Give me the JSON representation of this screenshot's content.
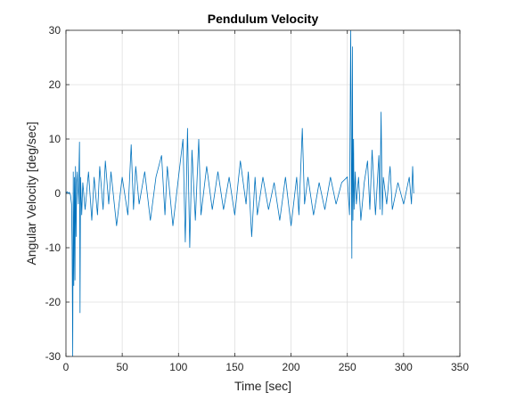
{
  "chart_data": {
    "type": "line",
    "title": "Pendulum Velocity",
    "xlabel": "Time [sec]",
    "ylabel": "Angular Velocity [deg/sec]",
    "xlim": [
      0,
      350
    ],
    "ylim": [
      -30,
      30
    ],
    "xticks": [
      "0",
      "50",
      "100",
      "150",
      "200",
      "250",
      "300",
      "350"
    ],
    "yticks": [
      "-30",
      "-20",
      "-10",
      "0",
      "10",
      "20",
      "30"
    ],
    "grid": true,
    "line_color": "#0072BD",
    "series": [
      {
        "x": [
          0,
          1,
          2,
          3,
          4,
          5,
          5.5,
          6,
          6.5,
          7,
          7.5,
          8,
          8.5,
          9,
          9.5,
          10,
          11,
          12,
          12.5,
          13,
          14,
          15,
          17,
          20,
          23,
          25,
          28,
          30,
          33,
          35,
          38,
          40,
          45,
          50,
          55,
          58,
          60,
          62,
          65,
          70,
          75,
          80,
          85,
          88,
          90,
          95,
          100,
          104,
          106,
          108,
          110,
          112,
          115,
          118,
          120,
          125,
          130,
          135,
          140,
          145,
          150,
          155,
          160,
          162,
          165,
          168,
          170,
          175,
          180,
          185,
          190,
          195,
          200,
          205,
          207,
          210,
          212,
          215,
          220,
          225,
          230,
          235,
          240,
          245,
          250,
          252,
          253,
          254,
          254.5,
          255,
          255.5,
          256,
          257,
          258,
          260,
          262,
          265,
          268,
          270,
          272,
          275,
          278,
          279,
          280,
          281,
          282,
          285,
          288,
          290,
          295,
          300,
          305,
          307,
          308,
          309
        ],
        "y": [
          0,
          0.3,
          0,
          0.2,
          -0.3,
          -2,
          -10,
          -30,
          4,
          -17,
          3,
          -16,
          5,
          -8,
          2,
          4,
          -2,
          9.5,
          -22,
          3,
          -4,
          2,
          -3,
          4,
          -5,
          3,
          -4,
          5,
          -3,
          6,
          -2,
          4,
          -6,
          3,
          -4,
          9,
          -3,
          5,
          -2,
          4,
          -5,
          3,
          7,
          -4,
          5,
          -6,
          3,
          10,
          -9,
          12,
          -10,
          8,
          -5,
          10,
          -4,
          5,
          -3,
          4,
          -3,
          3,
          -4,
          6,
          -2,
          4,
          -8,
          3,
          -4,
          3,
          -3,
          2,
          -5,
          3,
          -6,
          3,
          -4,
          12,
          -2,
          3,
          -4,
          2,
          -3,
          3,
          -2,
          2,
          3,
          -4,
          30,
          -12,
          27,
          -5,
          10,
          -3,
          4,
          -2,
          3,
          -5,
          2,
          6,
          -3,
          8,
          -4,
          7,
          -3,
          15,
          -4,
          3,
          -2,
          5,
          -3,
          2,
          -2,
          3,
          -2,
          5,
          0
        ]
      }
    ]
  }
}
